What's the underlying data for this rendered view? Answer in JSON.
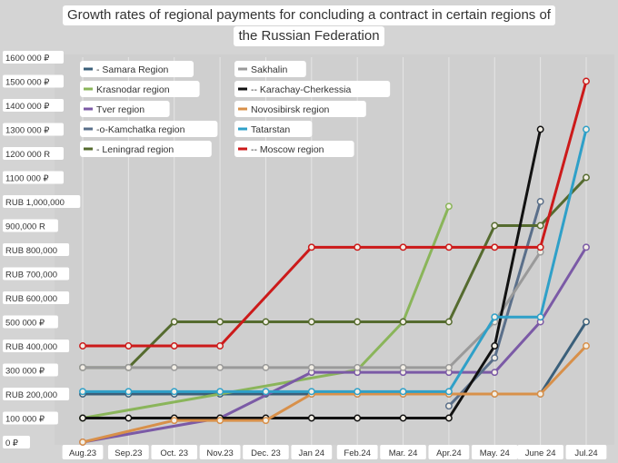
{
  "chart_data": {
    "type": "line",
    "title_lines": [
      "Growth rates of regional payments for concluding a contract in certain regions of",
      "the Russian Federation"
    ],
    "categories": [
      "Aug.23",
      "Sep.23",
      "Oct. 23",
      "Nov.23",
      "Dec. 23",
      "Jan 24",
      "Feb.24",
      "Mar. 24",
      "Apr.24",
      "May. 24",
      "June 24",
      "Jul.24"
    ],
    "y_ticks": [
      {
        "value": 0,
        "label": "0 ₽"
      },
      {
        "value": 100000,
        "label": "100 000 ₽"
      },
      {
        "value": 200000,
        "label": "RUB 200,000"
      },
      {
        "value": 300000,
        "label": "300 000 ₽"
      },
      {
        "value": 400000,
        "label": "RUB 400,000"
      },
      {
        "value": 500000,
        "label": "500 000 ₽"
      },
      {
        "value": 600000,
        "label": "RUB 600,000"
      },
      {
        "value": 700000,
        "label": "RUB 700,000"
      },
      {
        "value": 800000,
        "label": "RUB 800,000"
      },
      {
        "value": 900000,
        "label": "900,000 R"
      },
      {
        "value": 1000000,
        "label": "RUB 1,000,000"
      },
      {
        "value": 1100000,
        "label": "1100 000 ₽"
      },
      {
        "value": 1200000,
        "label": "1200 000 R"
      },
      {
        "value": 1300000,
        "label": "1300 000 ₽"
      },
      {
        "value": 1400000,
        "label": "1400 000 ₽"
      },
      {
        "value": 1500000,
        "label": "1500 000 ₽"
      },
      {
        "value": 1600000,
        "label": "1600 000 ₽"
      }
    ],
    "ylim": [
      0,
      1600000
    ],
    "grid": "vertical",
    "legend_position": "top-left",
    "series": [
      {
        "name": "- Samara Region",
        "color": "#3a5f7a",
        "values": [
          200000,
          200000,
          200000,
          200000,
          200000,
          200000,
          200000,
          200000,
          200000,
          200000,
          200000,
          500000
        ]
      },
      {
        "name": "Krasnodar region",
        "color": "#8ab55a",
        "values": [
          100000,
          null,
          null,
          null,
          null,
          null,
          300000,
          500000,
          980000,
          null,
          null,
          null
        ]
      },
      {
        "name": "Tver region",
        "color": "#7b5aa6",
        "values": [
          0,
          null,
          null,
          100000,
          null,
          290000,
          290000,
          290000,
          290000,
          290000,
          500000,
          810000
        ]
      },
      {
        "name": "-o-Kamchatka region",
        "color": "#5a6f8a",
        "values": [
          null,
          null,
          null,
          null,
          null,
          null,
          null,
          null,
          150000,
          350000,
          1000000,
          null
        ]
      },
      {
        "name": "- Leningrad region",
        "color": "#556b2f",
        "values": [
          310000,
          310000,
          500000,
          500000,
          500000,
          500000,
          500000,
          500000,
          500000,
          900000,
          900000,
          1100000
        ]
      },
      {
        "name": "Sakhalin",
        "color": "#9a9a9a",
        "values": [
          310000,
          310000,
          310000,
          310000,
          310000,
          310000,
          310000,
          310000,
          310000,
          500000,
          790000,
          null
        ]
      },
      {
        "name": "-- Karachay-Cherkessia",
        "color": "#111111",
        "values": [
          100000,
          100000,
          100000,
          100000,
          100000,
          100000,
          100000,
          100000,
          100000,
          400000,
          1300000,
          null
        ]
      },
      {
        "name": "Novosibirsk region",
        "color": "#d8904a",
        "values": [
          0,
          null,
          90000,
          90000,
          90000,
          200000,
          200000,
          200000,
          200000,
          200000,
          200000,
          400000
        ]
      },
      {
        "name": "Tatarstan",
        "color": "#2fa0c8",
        "values": [
          210000,
          210000,
          210000,
          210000,
          210000,
          210000,
          210000,
          210000,
          210000,
          520000,
          520000,
          1300000
        ]
      },
      {
        "name": "-- Moscow region",
        "color": "#cc1a1a",
        "values": [
          400000,
          400000,
          400000,
          400000,
          null,
          810000,
          810000,
          810000,
          810000,
          810000,
          810000,
          1500000
        ]
      }
    ]
  }
}
